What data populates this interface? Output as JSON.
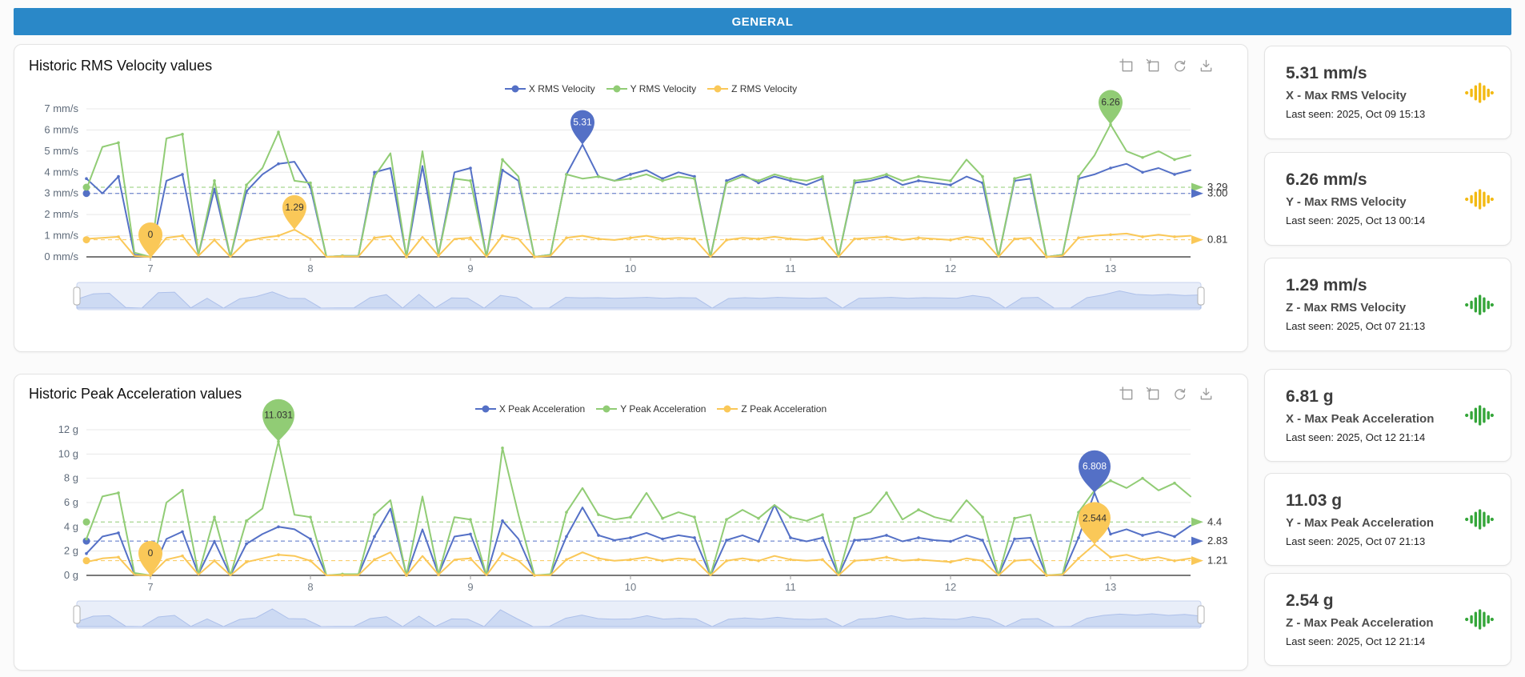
{
  "top_bar": {
    "title": "GENERAL",
    "color": "#2a88c8"
  },
  "charts": [
    {
      "title": "Historic RMS Velocity values",
      "toolbar_icons": [
        "area-zoom-icon",
        "zoom-reset-icon",
        "restore-icon",
        "save-image-icon"
      ],
      "chart_data": {
        "type": "line",
        "x_range": [
          6.6,
          13.5
        ],
        "x_ticks": [
          7,
          8,
          9,
          10,
          11,
          12,
          13
        ],
        "ylim": [
          0,
          7
        ],
        "y_ticks": [
          0,
          1,
          2,
          3,
          4,
          5,
          6,
          7
        ],
        "y_unit": "mm/s",
        "legend_position": "top-center",
        "grid": true,
        "series": [
          {
            "name": "X RMS Velocity",
            "color": "#5470c6",
            "values": [
              3.7,
              3.0,
              3.8,
              0.1,
              0,
              3.6,
              3.9,
              0.1,
              3.2,
              0,
              3.1,
              3.9,
              4.4,
              4.5,
              3.3,
              0,
              0.05,
              0.05,
              4.0,
              4.2,
              0,
              4.3,
              0.1,
              4.0,
              4.2,
              0,
              4.1,
              3.6,
              0,
              0.1,
              3.9,
              5.31,
              3.8,
              3.6,
              3.9,
              4.1,
              3.7,
              4.0,
              3.8,
              0,
              3.6,
              3.9,
              3.5,
              3.8,
              3.6,
              3.4,
              3.7,
              0,
              3.5,
              3.6,
              3.8,
              3.4,
              3.6,
              3.5,
              3.4,
              3.8,
              3.5,
              0,
              3.6,
              3.7,
              0,
              0.1,
              3.7,
              3.9,
              4.2,
              4.4,
              4.0,
              4.2,
              3.9,
              4.1
            ]
          },
          {
            "name": "Y RMS Velocity",
            "color": "#91cc75",
            "values": [
              3.2,
              5.2,
              5.4,
              0.2,
              0,
              5.6,
              5.8,
              0.1,
              3.6,
              0,
              3.4,
              4.2,
              5.9,
              3.6,
              3.5,
              0,
              0.05,
              0.05,
              3.8,
              4.9,
              0,
              5.0,
              0.1,
              3.7,
              3.6,
              0,
              4.6,
              3.8,
              0,
              0.1,
              3.9,
              3.7,
              3.8,
              3.6,
              3.7,
              3.9,
              3.6,
              3.8,
              3.7,
              0,
              3.5,
              3.8,
              3.6,
              3.9,
              3.7,
              3.6,
              3.8,
              0,
              3.6,
              3.7,
              3.9,
              3.6,
              3.8,
              3.7,
              3.6,
              4.6,
              3.8,
              0,
              3.7,
              3.9,
              0,
              0.1,
              3.8,
              4.8,
              6.26,
              5.0,
              4.7,
              5.0,
              4.6,
              4.8
            ]
          },
          {
            "name": "Z RMS Velocity",
            "color": "#fac858",
            "values": [
              0.85,
              0.9,
              0.95,
              0.05,
              0,
              0.9,
              1.0,
              0.05,
              0.8,
              0,
              0.75,
              0.9,
              1.0,
              1.29,
              0.85,
              0,
              0.02,
              0.02,
              0.9,
              1.0,
              0,
              0.95,
              0.05,
              0.85,
              0.9,
              0,
              1.0,
              0.85,
              0,
              0.05,
              0.9,
              1.0,
              0.85,
              0.8,
              0.9,
              1.0,
              0.85,
              0.9,
              0.85,
              0,
              0.8,
              0.9,
              0.85,
              0.95,
              0.85,
              0.8,
              0.9,
              0,
              0.85,
              0.9,
              0.95,
              0.8,
              0.9,
              0.85,
              0.8,
              0.95,
              0.85,
              0,
              0.85,
              0.9,
              0,
              0.05,
              0.9,
              1.0,
              1.05,
              1.1,
              0.95,
              1.05,
              0.95,
              1.0
            ]
          }
        ],
        "avg_lines": [
          {
            "value": 3.29,
            "label": "3.29",
            "color": "#91cc75"
          },
          {
            "value": 3.0,
            "label": "3.00",
            "color": "#5470c6"
          },
          {
            "value": 0.81,
            "label": "0.81",
            "color": "#fac858"
          }
        ],
        "max_points": [
          {
            "x": 9.7,
            "value": 5.31,
            "label": "5.31",
            "color": "#5470c6",
            "text": "#ffffff"
          },
          {
            "x": 13.0,
            "value": 6.26,
            "label": "6.26",
            "color": "#91cc75",
            "text": "#333333"
          },
          {
            "x": 7.9,
            "value": 1.29,
            "label": "1.29",
            "color": "#fac858",
            "text": "#333333"
          },
          {
            "x": 7.0,
            "value": 0,
            "label": "0",
            "color": "#fac858",
            "text": "#333333"
          }
        ]
      }
    },
    {
      "title": "Historic Peak Acceleration values",
      "toolbar_icons": [
        "area-zoom-icon",
        "zoom-reset-icon",
        "restore-icon",
        "save-image-icon"
      ],
      "chart_data": {
        "type": "line",
        "x_range": [
          6.6,
          13.5
        ],
        "x_ticks": [
          7,
          8,
          9,
          10,
          11,
          12,
          13
        ],
        "ylim": [
          0,
          12
        ],
        "y_ticks": [
          0,
          2,
          4,
          6,
          8,
          10,
          12
        ],
        "y_unit": "g",
        "legend_position": "top-center",
        "grid": true,
        "series": [
          {
            "name": "X Peak Acceleration",
            "color": "#5470c6",
            "values": [
              1.8,
              3.2,
              3.5,
              0.1,
              0,
              3.0,
              3.6,
              0.1,
              2.8,
              0,
              2.6,
              3.4,
              4.0,
              3.8,
              3.0,
              0,
              0.05,
              0.05,
              3.2,
              5.5,
              0,
              3.8,
              0.1,
              3.2,
              3.4,
              0,
              4.5,
              3.0,
              0,
              0.05,
              3.2,
              5.6,
              3.3,
              2.9,
              3.1,
              3.5,
              3.0,
              3.3,
              3.1,
              0,
              2.9,
              3.3,
              2.8,
              5.8,
              3.1,
              2.8,
              3.1,
              0,
              2.9,
              3.0,
              3.3,
              2.8,
              3.1,
              2.9,
              2.8,
              3.3,
              2.9,
              0,
              3.0,
              3.1,
              0,
              0.05,
              3.1,
              6.808,
              3.4,
              3.8,
              3.3,
              3.6,
              3.2,
              4.1
            ]
          },
          {
            "name": "Y Peak Acceleration",
            "color": "#91cc75",
            "values": [
              3.0,
              6.5,
              6.8,
              0.2,
              0,
              6.0,
              7.0,
              0.1,
              4.8,
              0,
              4.5,
              5.5,
              11.031,
              5.0,
              4.8,
              0,
              0.1,
              0.1,
              5.0,
              6.2,
              0,
              6.5,
              0.1,
              4.8,
              4.6,
              0,
              10.5,
              5.0,
              0,
              0.1,
              5.2,
              7.2,
              5.0,
              4.6,
              4.8,
              6.8,
              4.7,
              5.2,
              4.8,
              0,
              4.6,
              5.4,
              4.7,
              5.8,
              4.8,
              4.5,
              5.0,
              0,
              4.7,
              5.2,
              6.8,
              4.6,
              5.4,
              4.8,
              4.5,
              6.2,
              4.8,
              0,
              4.7,
              5.0,
              0,
              0.1,
              5.2,
              7.0,
              7.8,
              7.2,
              8.0,
              7.0,
              7.6,
              6.5
            ]
          },
          {
            "name": "Z Peak Acceleration",
            "color": "#fac858",
            "values": [
              1.1,
              1.4,
              1.5,
              0.05,
              0,
              1.3,
              1.6,
              0.05,
              1.2,
              0,
              1.1,
              1.4,
              1.7,
              1.6,
              1.2,
              0,
              0.02,
              0.02,
              1.3,
              1.9,
              0,
              1.6,
              0.05,
              1.3,
              1.4,
              0,
              1.8,
              1.2,
              0,
              0.02,
              1.3,
              1.9,
              1.4,
              1.2,
              1.3,
              1.5,
              1.2,
              1.4,
              1.3,
              0,
              1.2,
              1.4,
              1.2,
              1.6,
              1.3,
              1.2,
              1.3,
              0,
              1.2,
              1.3,
              1.5,
              1.2,
              1.3,
              1.2,
              1.1,
              1.4,
              1.2,
              0,
              1.2,
              1.3,
              0,
              0.05,
              1.4,
              2.544,
              1.5,
              1.7,
              1.3,
              1.5,
              1.2,
              1.4
            ]
          }
        ],
        "avg_lines": [
          {
            "value": 4.4,
            "label": "4.4",
            "color": "#91cc75"
          },
          {
            "value": 2.83,
            "label": "2.83",
            "color": "#5470c6"
          },
          {
            "value": 1.21,
            "label": "1.21",
            "color": "#fac858"
          }
        ],
        "max_points": [
          {
            "x": 7.8,
            "value": 11.031,
            "label": "11.031",
            "color": "#91cc75",
            "text": "#333333"
          },
          {
            "x": 12.9,
            "value": 6.808,
            "label": "6.808",
            "color": "#5470c6",
            "text": "#ffffff"
          },
          {
            "x": 12.9,
            "value": 2.544,
            "label": "2.544",
            "color": "#fac858",
            "text": "#333333"
          },
          {
            "x": 7.0,
            "value": 0,
            "label": "0",
            "color": "#fac858",
            "text": "#333333"
          }
        ]
      }
    }
  ],
  "stat_cards": [
    {
      "value": "5.31 mm/s",
      "label": "X - Max RMS Velocity",
      "last_seen": "Last seen: 2025, Oct 09 15:13",
      "icon": "sound-wave-icon",
      "icon_color": "#f3ba14"
    },
    {
      "value": "6.26 mm/s",
      "label": "Y - Max RMS Velocity",
      "last_seen": "Last seen: 2025, Oct 13 00:14",
      "icon": "sound-wave-icon",
      "icon_color": "#f3ba14"
    },
    {
      "value": "1.29 mm/s",
      "label": "Z - Max RMS Velocity",
      "last_seen": "Last seen: 2025, Oct 07 21:13",
      "icon": "sound-wave-icon",
      "icon_color": "#35a63a"
    },
    {
      "value": "6.81 g",
      "label": "X - Max Peak Acceleration",
      "last_seen": "Last seen: 2025, Oct 12 21:14",
      "icon": "sound-wave-icon",
      "icon_color": "#35a63a"
    },
    {
      "value": "11.03 g",
      "label": "Y - Max Peak Acceleration",
      "last_seen": "Last seen: 2025, Oct 07 21:13",
      "icon": "sound-wave-icon",
      "icon_color": "#35a63a"
    },
    {
      "value": "2.54 g",
      "label": "Z - Max Peak Acceleration",
      "last_seen": "Last seen: 2025, Oct 12 21:14",
      "icon": "sound-wave-icon",
      "icon_color": "#35a63a"
    }
  ]
}
